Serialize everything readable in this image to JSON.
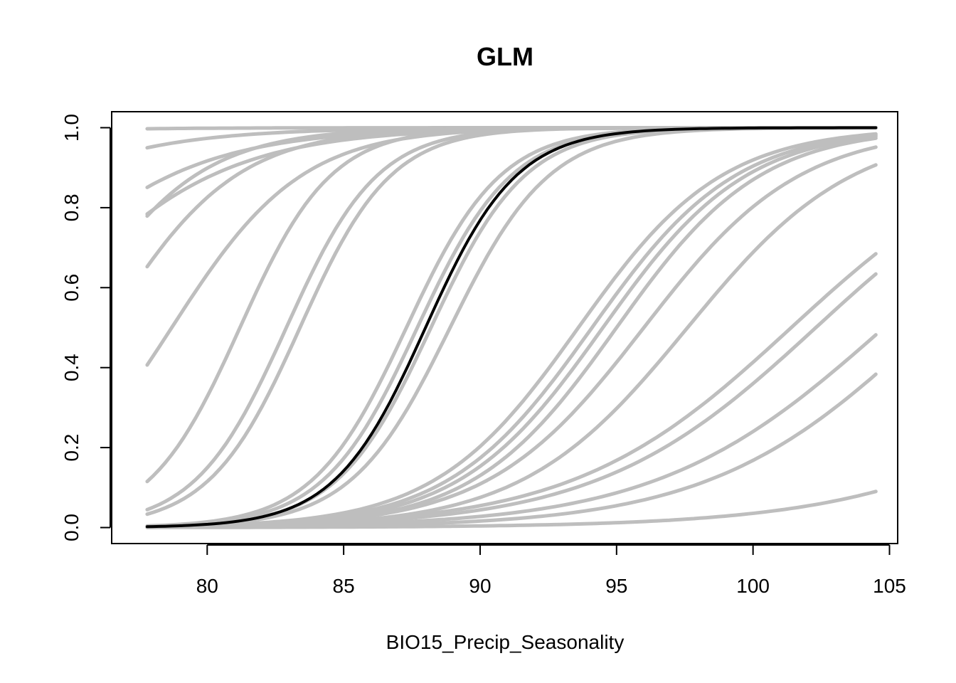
{
  "chart_data": {
    "type": "line",
    "title": "GLM",
    "xlabel": "BIO15_Precip_Seasonality",
    "ylabel": "",
    "xlim": [
      76.5,
      105.3
    ],
    "ylim": [
      -0.04,
      1.04
    ],
    "x_range": [
      77.8,
      104.5
    ],
    "xticks": [
      80,
      85,
      90,
      95,
      100,
      105
    ],
    "yticks": [
      0.0,
      0.2,
      0.4,
      0.6,
      0.8,
      1.0
    ],
    "ytick_labels": [
      "0.0",
      "0.2",
      "0.4",
      "0.6",
      "0.8",
      "1.0"
    ],
    "grid": false,
    "legend": "none",
    "colors": {
      "replicate": "#bebebe",
      "mean": "#000000"
    },
    "replicate_curves": [
      {
        "midpoint": 58,
        "slope": 0.3
      },
      {
        "midpoint": 68,
        "slope": 0.3
      },
      {
        "midpoint": 72,
        "slope": 0.3
      },
      {
        "midpoint": 73.5,
        "slope": 0.3
      },
      {
        "midpoint": 74.8,
        "slope": 0.42
      },
      {
        "midpoint": 76.3,
        "slope": 0.42
      },
      {
        "midpoint": 78.7,
        "slope": 0.42
      },
      {
        "midpoint": 81.2,
        "slope": 0.6
      },
      {
        "midpoint": 82.9,
        "slope": 0.6
      },
      {
        "midpoint": 83.4,
        "slope": 0.6
      },
      {
        "midpoint": 87.3,
        "slope": 0.58
      },
      {
        "midpoint": 87.7,
        "slope": 0.58
      },
      {
        "midpoint": 88.2,
        "slope": 0.58
      },
      {
        "midpoint": 88.9,
        "slope": 0.55
      },
      {
        "midpoint": 93.6,
        "slope": 0.38
      },
      {
        "midpoint": 94.1,
        "slope": 0.38
      },
      {
        "midpoint": 94.5,
        "slope": 0.38
      },
      {
        "midpoint": 95.0,
        "slope": 0.38
      },
      {
        "midpoint": 96.0,
        "slope": 0.35
      },
      {
        "midpoint": 97.6,
        "slope": 0.33
      },
      {
        "midpoint": 101.4,
        "slope": 0.25
      },
      {
        "midpoint": 102.3,
        "slope": 0.25
      },
      {
        "midpoint": 104.8,
        "slope": 0.24
      },
      {
        "midpoint": 106.4,
        "slope": 0.25
      },
      {
        "midpoint": 115.0,
        "slope": 0.22
      }
    ],
    "mean_curve": {
      "midpoint": 88.0,
      "slope": 0.6
    }
  }
}
